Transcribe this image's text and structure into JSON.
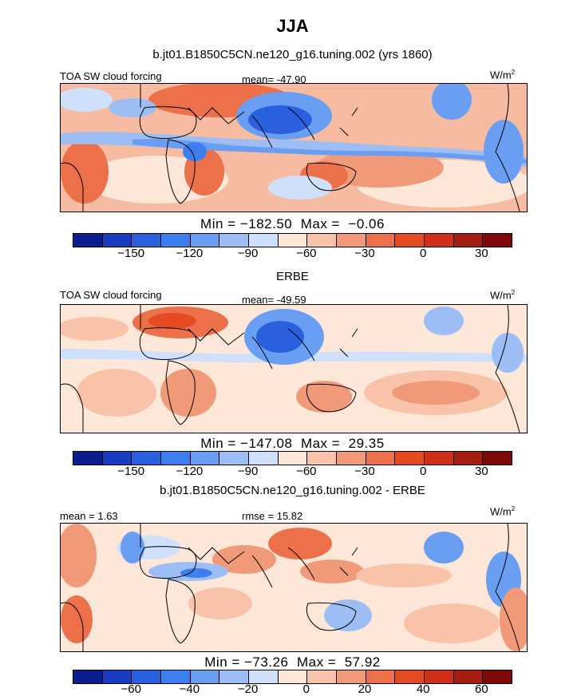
{
  "page": {
    "season": "JJA"
  },
  "chart_data": [
    {
      "type": "heatmap",
      "title": "b.jt01.B1850C5CN.ne120_g16.tuning.002 (yrs 1860)",
      "field_label": "TOA SW cloud forcing",
      "stat_label": "mean=",
      "stat_value": "-47.90",
      "units": "W/m",
      "units_exp": "2",
      "min_label": "Min =",
      "min_value": "-182.50",
      "max_label": "Max =",
      "max_value": "-0.06",
      "colorbar_ticks": [
        "-150",
        "-120",
        "-90",
        "-60",
        "-30",
        "0",
        "30"
      ],
      "colors": [
        "#0c1e8c",
        "#1a3cc0",
        "#2a5fdd",
        "#3d7fee",
        "#6a9ef3",
        "#9dbdf5",
        "#cfe0fa",
        "#fde7d9",
        "#f8c3a8",
        "#f19a79",
        "#ec7049",
        "#e64a23",
        "#d0301a",
        "#a61d12",
        "#7d0a08"
      ]
    },
    {
      "type": "heatmap",
      "title": "ERBE",
      "field_label": "TOA SW cloud forcing",
      "stat_label": "mean=",
      "stat_value": "-49.59",
      "units": "W/m",
      "units_exp": "2",
      "min_label": "Min =",
      "min_value": "-147.08",
      "max_label": "Max =",
      "max_value": "29.35",
      "colorbar_ticks": [
        "-150",
        "-120",
        "-90",
        "-60",
        "-30",
        "0",
        "30"
      ],
      "colors": [
        "#0c1e8c",
        "#1a3cc0",
        "#2a5fdd",
        "#3d7fee",
        "#6a9ef3",
        "#9dbdf5",
        "#cfe0fa",
        "#fde7d9",
        "#f8c3a8",
        "#f19a79",
        "#ec7049",
        "#e64a23",
        "#d0301a",
        "#a61d12",
        "#7d0a08"
      ]
    },
    {
      "type": "heatmap",
      "title": "b.jt01.B1850C5CN.ne120_g16.tuning.002 - ERBE",
      "left_label": "mean =",
      "left_value": "1.63",
      "stat_label": "rmse =",
      "stat_value": "15.82",
      "units": "W/m",
      "units_exp": "2",
      "min_label": "Min =",
      "min_value": "-73.26",
      "max_label": "Max =",
      "max_value": "57.92",
      "colorbar_ticks": [
        "-60",
        "-40",
        "-20",
        "0",
        "20",
        "40",
        "60"
      ],
      "colors": [
        "#0c1e8c",
        "#1a3cc0",
        "#2a5fdd",
        "#3d7fee",
        "#6a9ef3",
        "#9dbdf5",
        "#cfe0fa",
        "#fde7d9",
        "#f8c3a8",
        "#f19a79",
        "#ec7049",
        "#e64a23",
        "#d0301a",
        "#a61d12",
        "#7d0a08"
      ]
    }
  ]
}
